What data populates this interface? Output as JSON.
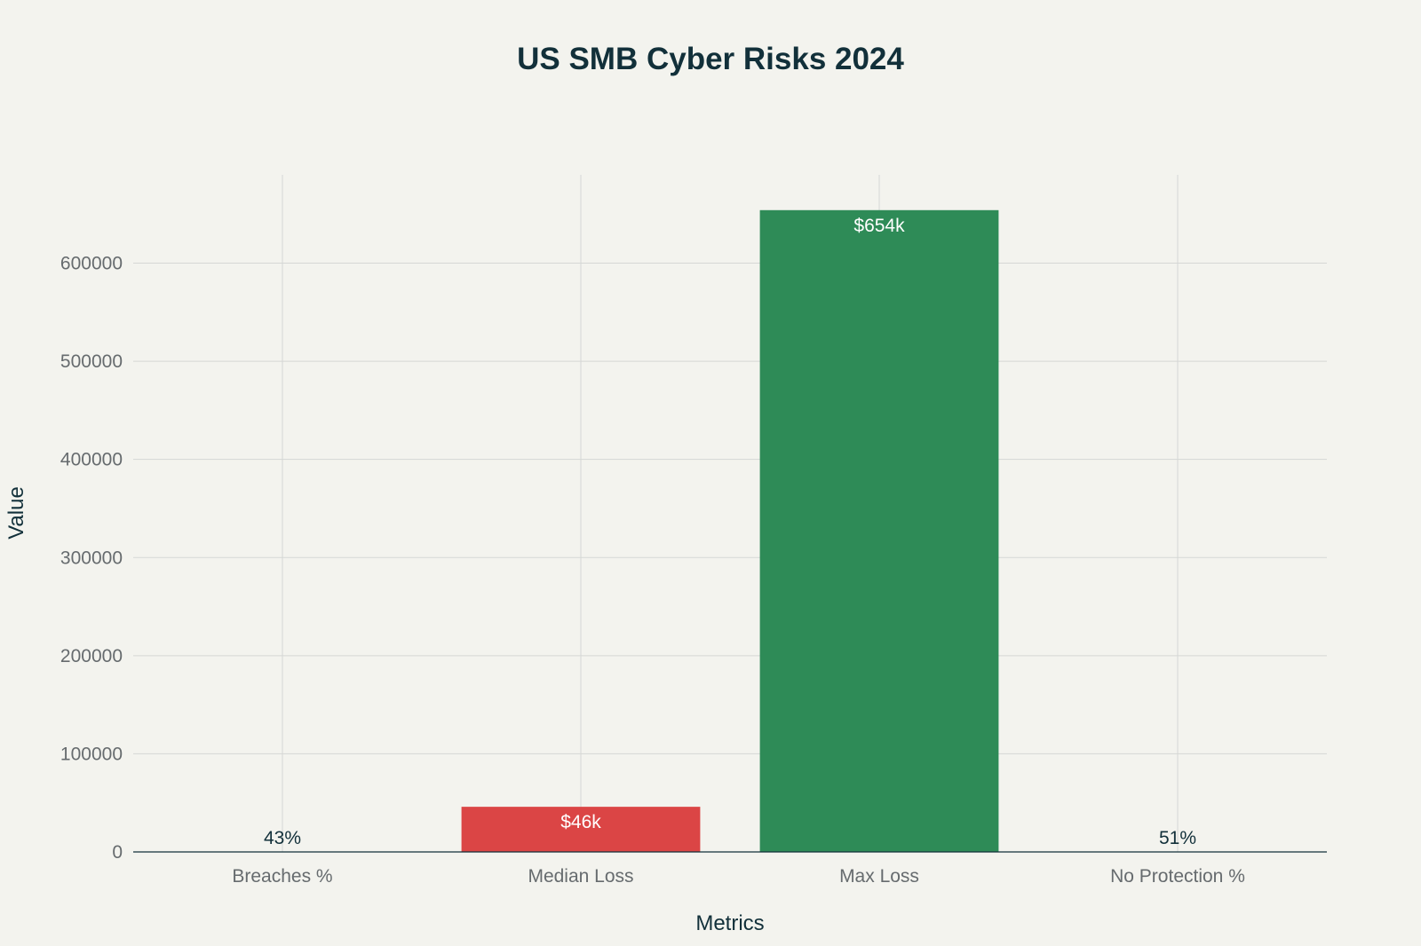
{
  "chart_data": {
    "type": "bar",
    "title": "US SMB Cyber Risks 2024",
    "xlabel": "Metrics",
    "ylabel": "Value",
    "categories": [
      "Breaches %",
      "Median Loss",
      "Max Loss",
      "No Protection %"
    ],
    "values": [
      43,
      46000,
      654000,
      51
    ],
    "data_labels": [
      "43%",
      "$46k",
      "$654k",
      "51%"
    ],
    "colors": [
      "#1fb8cd",
      "#db4545",
      "#2e8b57",
      "#5d878f"
    ],
    "ylim": [
      0,
      690000
    ],
    "yticks": [
      0,
      100000,
      200000,
      300000,
      400000,
      500000,
      600000
    ],
    "grid": true,
    "legend": "none"
  }
}
